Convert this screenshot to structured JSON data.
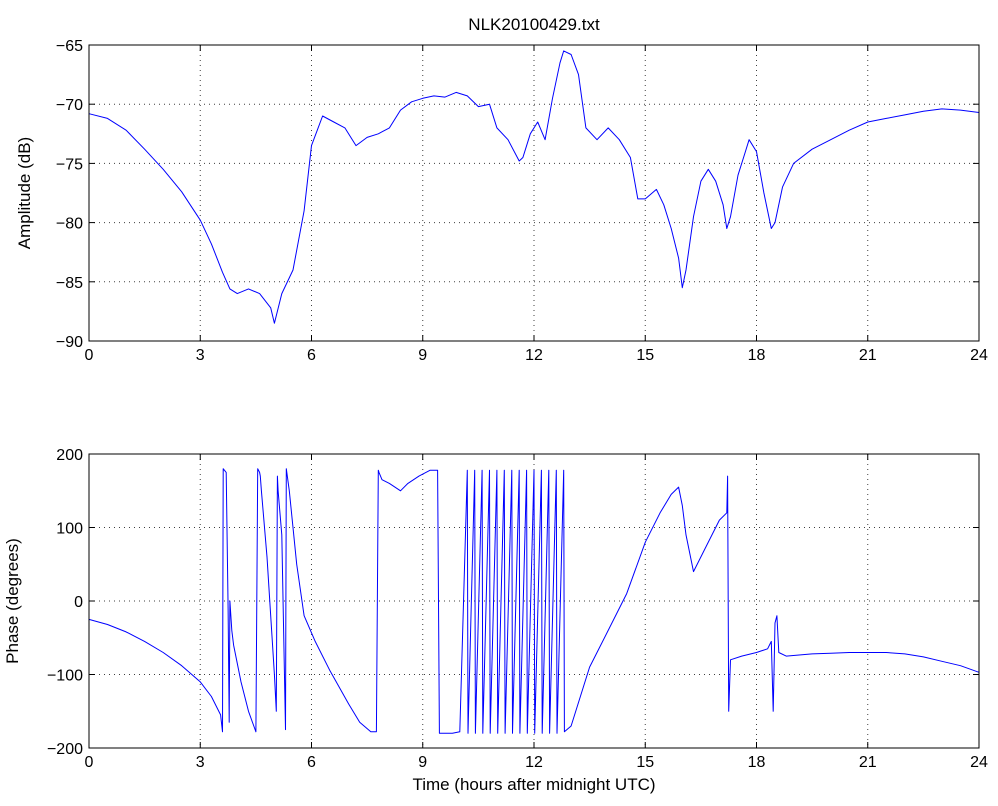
{
  "title": "NLK20100429.txt",
  "colors": {
    "series": "#0000ff",
    "axes": "#000000",
    "background": "#ffffff"
  },
  "chart_data": [
    {
      "type": "line",
      "title": "NLK20100429.txt",
      "xlabel": "",
      "ylabel": "Amplitude (dB)",
      "xlim": [
        0,
        24
      ],
      "ylim": [
        -90,
        -65
      ],
      "xticks": [
        0,
        3,
        6,
        9,
        12,
        15,
        18,
        21,
        24
      ],
      "yticks": [
        -90,
        -85,
        -80,
        -75,
        -70,
        -65
      ],
      "xtick_labels": [
        "0",
        "3",
        "6",
        "9",
        "12",
        "15",
        "18",
        "21",
        "24"
      ],
      "ytick_labels": [
        "−90",
        "−85",
        "−80",
        "−75",
        "−70",
        "−65"
      ],
      "grid": true,
      "series": [
        {
          "x": [
            0,
            0.5,
            1,
            1.5,
            2,
            2.5,
            3,
            3.3,
            3.6,
            3.8,
            4.0,
            4.3,
            4.6,
            4.9,
            5.0,
            5.2,
            5.5,
            5.8,
            6.0,
            6.3,
            6.6,
            6.9,
            7.2,
            7.5,
            7.8,
            8.1,
            8.4,
            8.7,
            9.0,
            9.3,
            9.6,
            9.9,
            10.2,
            10.5,
            10.8,
            11.0,
            11.3,
            11.6,
            11.7,
            11.9,
            12.1,
            12.3,
            12.5,
            12.7,
            12.8,
            13.0,
            13.2,
            13.4,
            13.7,
            14.0,
            14.3,
            14.6,
            14.8,
            15.0,
            15.3,
            15.5,
            15.7,
            15.9,
            16.0,
            16.1,
            16.3,
            16.5,
            16.7,
            16.9,
            17.1,
            17.2,
            17.3,
            17.5,
            17.7,
            17.8,
            18.0,
            18.2,
            18.4,
            18.5,
            18.7,
            19.0,
            19.5,
            20,
            20.5,
            21,
            21.5,
            22,
            22.5,
            23,
            23.5,
            24
          ],
          "y": [
            -70.8,
            -71.2,
            -72.2,
            -73.8,
            -75.5,
            -77.4,
            -79.8,
            -81.8,
            -84.2,
            -85.6,
            -86.0,
            -85.6,
            -86.0,
            -87.2,
            -88.5,
            -86.0,
            -84.0,
            -79.0,
            -73.5,
            -71.0,
            -71.5,
            -72.0,
            -73.5,
            -72.8,
            -72.5,
            -72.0,
            -70.5,
            -69.8,
            -69.5,
            -69.3,
            -69.4,
            -69.0,
            -69.3,
            -70.2,
            -70.0,
            -72.0,
            -73.0,
            -74.8,
            -74.5,
            -72.5,
            -71.5,
            -73.0,
            -69.5,
            -66.5,
            -65.5,
            -65.8,
            -67.5,
            -72.0,
            -73.0,
            -72.0,
            -73.0,
            -74.5,
            -78.0,
            -78.0,
            -77.2,
            -78.5,
            -80.5,
            -83.0,
            -85.5,
            -84.0,
            -79.5,
            -76.5,
            -75.5,
            -76.5,
            -78.5,
            -80.5,
            -79.5,
            -76.0,
            -74.0,
            -73.0,
            -74.0,
            -77.5,
            -80.5,
            -80.0,
            -77.0,
            -75.0,
            -73.8,
            -73.0,
            -72.2,
            -71.5,
            -71.2,
            -70.9,
            -70.6,
            -70.4,
            -70.5,
            -70.7
          ]
        }
      ]
    },
    {
      "type": "line",
      "title": "",
      "xlabel": "Time (hours after midnight UTC)",
      "ylabel": "Phase (degrees)",
      "xlim": [
        0,
        24
      ],
      "ylim": [
        -200,
        200
      ],
      "xticks": [
        0,
        3,
        6,
        9,
        12,
        15,
        18,
        21,
        24
      ],
      "yticks": [
        -200,
        -100,
        0,
        100,
        200
      ],
      "xtick_labels": [
        "0",
        "3",
        "6",
        "9",
        "12",
        "15",
        "18",
        "21",
        "24"
      ],
      "ytick_labels": [
        "−200",
        "−100",
        "0",
        "100",
        "200"
      ],
      "grid": true,
      "series": [
        {
          "x": [
            0,
            0.5,
            1,
            1.5,
            2,
            2.5,
            3,
            3.3,
            3.55,
            3.6,
            3.62,
            3.7,
            3.75,
            3.78,
            3.8,
            3.85,
            3.9,
            4.1,
            4.3,
            4.5,
            4.55,
            4.6,
            4.62,
            4.65,
            4.8,
            5.0,
            5.05,
            5.08,
            5.1,
            5.2,
            5.3,
            5.32,
            5.4,
            5.6,
            5.8,
            6.1,
            6.5,
            7.0,
            7.3,
            7.6,
            7.75,
            7.8,
            7.82,
            7.9,
            8.1,
            8.4,
            8.6,
            8.9,
            9.2,
            9.4,
            9.45,
            9.5,
            9.8,
            10.0,
            10.2,
            10.22,
            10.4,
            10.42,
            10.6,
            10.62,
            10.8,
            10.82,
            11.0,
            11.02,
            11.2,
            11.22,
            11.4,
            11.42,
            11.6,
            11.62,
            11.8,
            11.82,
            12.0,
            12.02,
            12.2,
            12.22,
            12.4,
            12.42,
            12.6,
            12.62,
            12.8,
            12.82,
            13.0,
            13.5,
            14.0,
            14.5,
            15.0,
            15.4,
            15.7,
            15.9,
            16.0,
            16.1,
            16.3,
            16.6,
            17.0,
            17.2,
            17.22,
            17.25,
            17.3,
            17.6,
            18.0,
            18.3,
            18.4,
            18.45,
            18.5,
            18.55,
            18.6,
            18.8,
            19.5,
            20,
            20.5,
            21,
            21.5,
            22,
            22.5,
            23,
            23.5,
            24
          ],
          "y": [
            -25,
            -32,
            -42,
            -55,
            -70,
            -88,
            -110,
            -130,
            -155,
            -178,
            180,
            175,
            -10,
            -165,
            0,
            -40,
            -60,
            -110,
            -150,
            -178,
            180,
            175,
            170,
            150,
            60,
            -100,
            -150,
            170,
            150,
            90,
            -175,
            180,
            150,
            50,
            -20,
            -55,
            -95,
            -140,
            -165,
            -178,
            -178,
            178,
            175,
            165,
            160,
            150,
            160,
            170,
            178,
            178,
            -180,
            -180,
            -180,
            -178,
            178,
            -180,
            178,
            -180,
            178,
            -180,
            178,
            -180,
            178,
            -180,
            178,
            -180,
            178,
            -180,
            178,
            -180,
            178,
            -180,
            178,
            -180,
            178,
            -180,
            178,
            -180,
            178,
            -180,
            178,
            -178,
            -170,
            -90,
            -40,
            10,
            80,
            120,
            145,
            155,
            130,
            90,
            40,
            70,
            110,
            120,
            170,
            -150,
            -80,
            -75,
            -70,
            -65,
            -55,
            -150,
            -30,
            -20,
            -70,
            -75,
            -72,
            -71,
            -70,
            -70,
            -70,
            -72,
            -76,
            -82,
            -88,
            -97
          ]
        }
      ]
    }
  ]
}
